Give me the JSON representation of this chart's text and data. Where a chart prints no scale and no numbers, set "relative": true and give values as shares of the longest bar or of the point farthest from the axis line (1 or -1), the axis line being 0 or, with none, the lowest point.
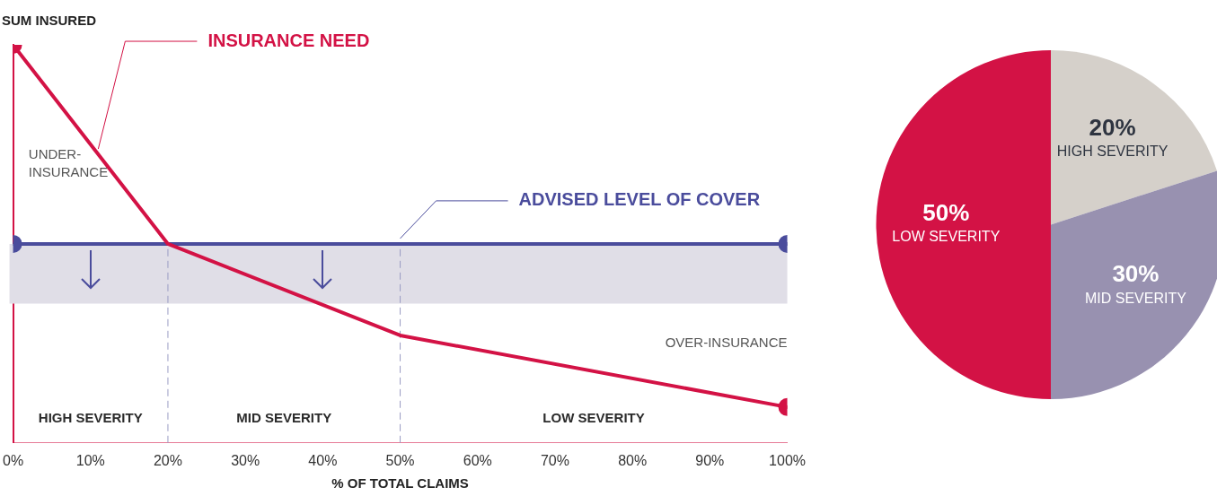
{
  "chart_data": [
    {
      "type": "line",
      "ylabel": "SUM INSURED",
      "xlabel": "% OF TOTAL CLAIMS",
      "relative": true,
      "xlim": [
        0,
        100
      ],
      "xticks": [
        {
          "value": 0,
          "label": "0%"
        },
        {
          "value": 10,
          "label": "10%"
        },
        {
          "value": 20,
          "label": "20%"
        },
        {
          "value": 30,
          "label": "30%"
        },
        {
          "value": 40,
          "label": "40%"
        },
        {
          "value": 50,
          "label": "50%"
        },
        {
          "value": 60,
          "label": "60%"
        },
        {
          "value": 70,
          "label": "70%"
        },
        {
          "value": 80,
          "label": "80%"
        },
        {
          "value": 90,
          "label": "90%"
        },
        {
          "value": 100,
          "label": "100%"
        }
      ],
      "tick_labels": "x",
      "grid": false,
      "legend": false,
      "marker": "circle",
      "line_style": "solid",
      "series": [
        {
          "name": "INSURANCE NEED",
          "color": "#d31245",
          "x": [
            0,
            20,
            50,
            100
          ],
          "values": [
            1,
            0.5,
            0.27,
            0.09
          ]
        },
        {
          "name": "ADVISED LEVEL OF COVER",
          "color": "#4a4c9c",
          "x": [
            0,
            100
          ],
          "values": [
            0.5,
            0.5
          ]
        }
      ],
      "bands": [
        {
          "axis": "y",
          "from": 0.35,
          "to": 0.5,
          "color": "#e0dee7"
        }
      ],
      "ref_lines": [
        {
          "axis": "x",
          "value": 20,
          "color": "#9a9cc4",
          "line_style": "dashed"
        },
        {
          "axis": "x",
          "value": 50,
          "color": "#9a9cc4",
          "line_style": "dashed"
        }
      ],
      "annotations": [
        "UNDER-INSURANCE",
        "OVER-INSURANCE",
        "HIGH SEVERITY",
        "MID SEVERITY",
        "LOW SEVERITY"
      ]
    },
    {
      "type": "pie",
      "categories": [
        "HIGH SEVERITY",
        "MID SEVERITY",
        "LOW SEVERITY"
      ],
      "values": [
        20,
        30,
        50
      ],
      "colors": [
        "#d5d0ca",
        "#9891b0",
        "#d31245"
      ],
      "value_labels": [
        "20%",
        "30%",
        "50%"
      ],
      "legend": false
    }
  ]
}
